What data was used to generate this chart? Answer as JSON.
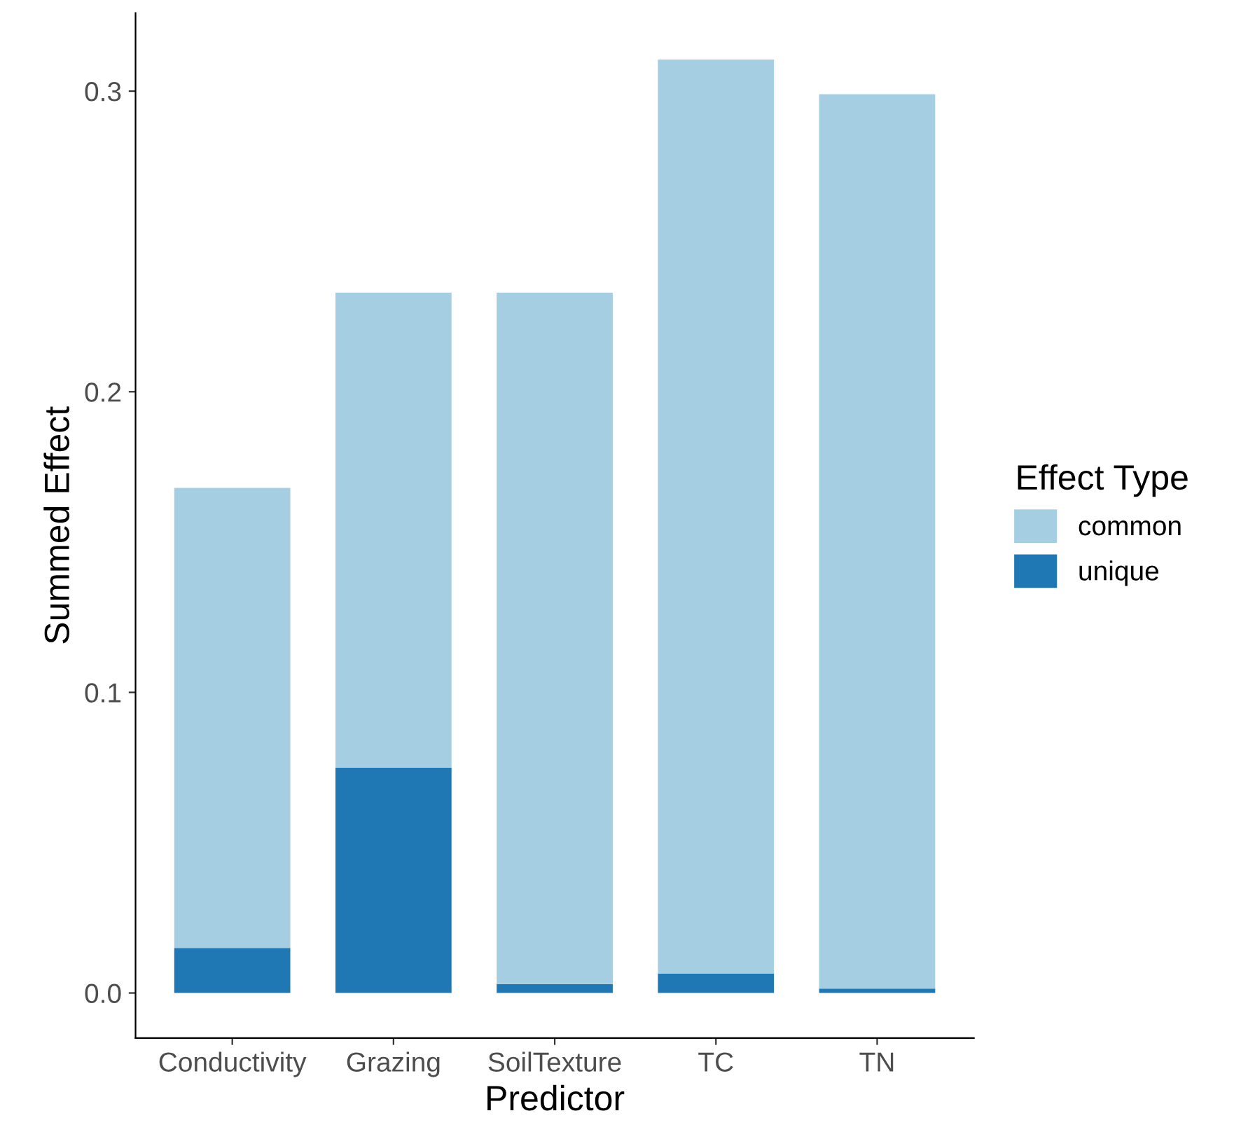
{
  "chart_data": {
    "type": "bar",
    "xlabel": "Predictor",
    "ylabel": "Summed Effect",
    "legend_title": "Effect Type",
    "categories": [
      "Conductivity",
      "Grazing",
      "SoilTexture",
      "TC",
      "TN"
    ],
    "stacked": true,
    "series": [
      {
        "name": "unique",
        "color": "#1f78b4",
        "values": [
          0.015,
          0.075,
          0.003,
          0.0065,
          0.0015
        ]
      },
      {
        "name": "common",
        "color": "#a6cee3",
        "values": [
          0.153,
          0.158,
          0.23,
          0.304,
          0.2975
        ]
      }
    ],
    "ylim": [
      -0.015,
      0.326
    ],
    "yticks": [
      {
        "value": 0,
        "label": "0.0"
      },
      0.1,
      0.2,
      0.3
    ],
    "grid": false,
    "legend": "right"
  }
}
